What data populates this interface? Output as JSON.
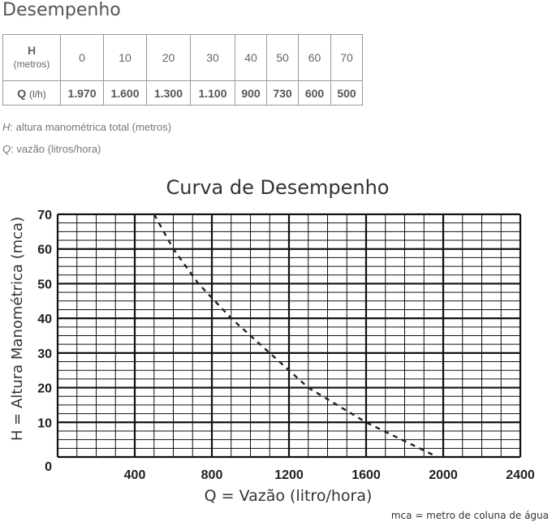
{
  "heading": "Desempenho",
  "table": {
    "h_label": "H",
    "h_unit": "(metros)",
    "q_label": "Q",
    "q_unit": "(l/h)",
    "h_values": [
      "0",
      "10",
      "20",
      "30",
      "40",
      "50",
      "60",
      "70"
    ],
    "q_values": [
      "1.970",
      "1.600",
      "1.300",
      "1.100",
      "900",
      "730",
      "600",
      "500"
    ]
  },
  "notes": {
    "h_symbol": "H",
    "h_text": ": altura manométrica total (metros)",
    "q_symbol": "Q",
    "q_text": ": vazão (litros/hora)"
  },
  "chart_data": {
    "type": "line",
    "title": "Curva de Desempenho",
    "xlabel": "Q = Vazão (litro/hora)",
    "ylabel": "H = Altura Manométrica (mca)",
    "footnote": "mca = metro de coluna de água",
    "xlim": [
      0,
      2400
    ],
    "ylim": [
      0,
      70
    ],
    "x_ticks": [
      "400",
      "800",
      "1200",
      "1600",
      "2000",
      "2400"
    ],
    "y_ticks": [
      "0",
      "10",
      "20",
      "30",
      "40",
      "50",
      "60",
      "70"
    ],
    "grid": true,
    "line_style": "dashed",
    "series": [
      {
        "x": [
          500,
          600,
          730,
          900,
          1100,
          1300,
          1600,
          1970
        ],
        "y": [
          70,
          60,
          50,
          40,
          30,
          20,
          10,
          0
        ]
      }
    ]
  }
}
